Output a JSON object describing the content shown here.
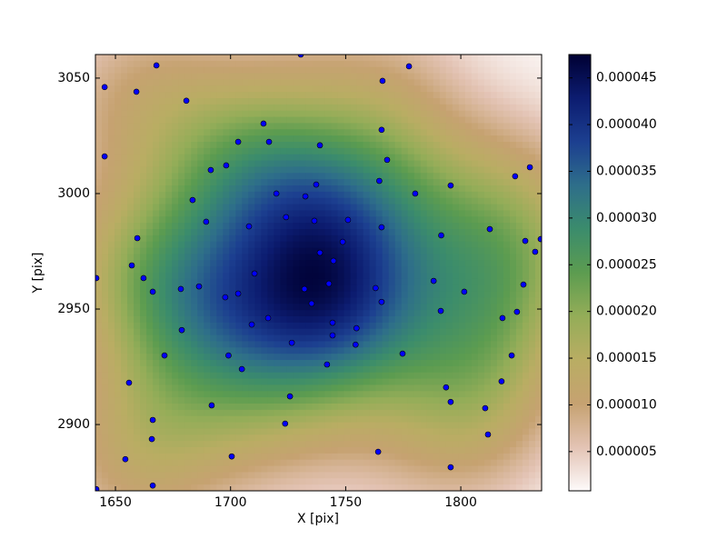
{
  "chart_data": {
    "type": "scatter",
    "x_label": "X [pix]",
    "y_label": "Y [pix]",
    "x": [
      1667.8,
      1730.5,
      1777.5,
      1766,
      1645.3,
      1659.1,
      1680.8,
      1714.3,
      1765.6,
      1703.3,
      1716.7,
      1738.8,
      1645.3,
      1768,
      1691.4,
      1698.1,
      1830,
      1823.6,
      1737.2,
      1764.6,
      1795.6,
      1719.9,
      1732.5,
      1780.2,
      1683.5,
      1724.1,
      1689.4,
      1736.4,
      1751,
      1708,
      1765.6,
      1812.6,
      1659.5,
      1791.5,
      1748.7,
      1828,
      1834.7,
      1832.3,
      1738.8,
      1744.7,
      1657.1,
      1710.4,
      1641.7,
      1662.2,
      1788.2,
      1742.7,
      1827.2,
      1686.3,
      1763,
      1678.4,
      1732.1,
      1666.2,
      1801.5,
      1703.3,
      1697.7,
      1765.6,
      1735.2,
      1791.3,
      1824.4,
      1716.3,
      1818.1,
      1744.3,
      1709.2,
      1754.7,
      1678.8,
      1744.3,
      1726.6,
      1754.3,
      1774.7,
      1671.3,
      1699.1,
      1822.1,
      1741.9,
      1704.9,
      1817.7,
      1655.9,
      1793.6,
      1725.8,
      1795.6,
      1691.8,
      1810.6,
      1666.2,
      1723.7,
      1811.8,
      1665.8,
      1764.1,
      1700.5,
      1654.3,
      1795.6,
      1666.2,
      1641.7
    ],
    "values": [
      3055.5,
      3060.2,
      3055.1,
      3048.8,
      3046.1,
      3044.1,
      3040.2,
      3030.3,
      3027.6,
      3022.4,
      3022.4,
      3020.9,
      3016.1,
      3014.6,
      3010.2,
      3012.2,
      3011.4,
      3007.5,
      3003.9,
      3005.5,
      3003.5,
      3000,
      2998.8,
      3000,
      2997.2,
      2989.8,
      2987.8,
      2988.2,
      2988.6,
      2985.8,
      2985.4,
      2984.6,
      2980.7,
      2981.9,
      2979.1,
      2979.5,
      2980.3,
      2974.8,
      2974.4,
      2970.9,
      2968.9,
      2965.4,
      2963.4,
      2963.4,
      2962.2,
      2961,
      2960.6,
      2959.8,
      2959.1,
      2958.7,
      2958.7,
      2957.5,
      2957.5,
      2956.7,
      2955.1,
      2953.1,
      2952.4,
      2949.2,
      2948.8,
      2946.1,
      2946.1,
      2944.1,
      2943.3,
      2941.7,
      2940.9,
      2938.6,
      2935.4,
      2934.6,
      2930.7,
      2929.9,
      2929.9,
      2929.9,
      2926,
      2924,
      2918.7,
      2918.1,
      2916.1,
      2912.2,
      2909.8,
      2908.3,
      2907.1,
      2902,
      2900.4,
      2895.7,
      2893.7,
      2888.2,
      2886.2,
      2885,
      2881.5,
      2873.6,
      2872
    ],
    "color": "#0000ff",
    "xlim": [
      1641.3,
      1835.1
    ],
    "ylim": [
      2871.3,
      3060.2
    ],
    "xticks": [
      1650,
      1700,
      1750,
      1800
    ],
    "yticks": [
      2900,
      2950,
      3000,
      3050
    ],
    "colormap": [
      "#fdfafa",
      "#e3c3b4",
      "#c6a271",
      "#b9ad63",
      "#94ad58",
      "#5c9c50",
      "#3b8c6c",
      "#2e6e8a",
      "#1c3f90",
      "#0c1c70",
      "#000033"
    ],
    "clim": [
      8e-07,
      4.75e-05
    ],
    "cticks": [
      {
        "value": 5e-06,
        "label": "0.000005"
      },
      {
        "value": 1e-05,
        "label": "0.000010"
      },
      {
        "value": 1.5e-05,
        "label": "0.000015"
      },
      {
        "value": 2e-05,
        "label": "0.000020"
      },
      {
        "value": 2.5e-05,
        "label": "0.000025"
      },
      {
        "value": 3e-05,
        "label": "0.000030"
      },
      {
        "value": 3.5e-05,
        "label": "0.000035"
      },
      {
        "value": 4e-05,
        "label": "0.000040"
      },
      {
        "value": 4.5e-05,
        "label": "0.000045"
      }
    ]
  }
}
